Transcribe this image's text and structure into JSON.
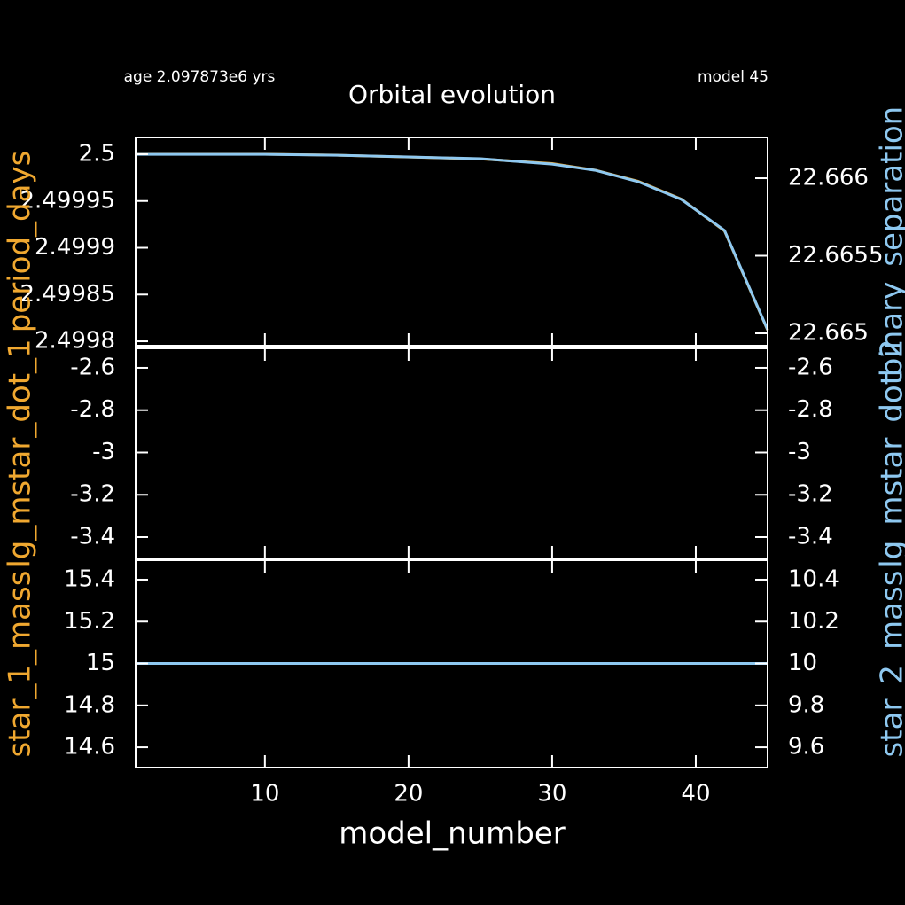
{
  "header": {
    "age": "age 2.097873e6 yrs",
    "model": "model 45"
  },
  "chart_data": [
    {
      "type": "line",
      "title": "Orbital evolution",
      "x": [
        1,
        5,
        10,
        15,
        20,
        25,
        30,
        33,
        36,
        39,
        42,
        45
      ],
      "series": [
        {
          "name": "period_days",
          "color": "#f0a830",
          "values": [
            2.5,
            2.5,
            2.5,
            2.499999,
            2.499997,
            2.499995,
            2.49999,
            2.499983,
            2.499971,
            2.499952,
            2.499918,
            2.499812
          ]
        },
        {
          "name": "binary_separation",
          "color": "#8ec8f0",
          "axis": "y2",
          "values": [
            22.666154,
            22.666154,
            22.666154,
            22.666148,
            22.666137,
            22.666126,
            22.666091,
            22.666051,
            22.665977,
            22.665863,
            22.665663,
            22.665023
          ]
        }
      ],
      "xlim": [
        1,
        45
      ],
      "xticks": [
        10,
        20,
        30,
        40
      ],
      "ylim": [
        2.4997953,
        2.500018
      ],
      "yticks": [
        2.4998,
        2.49985,
        2.4999,
        2.49995,
        2.5
      ],
      "y2lim": [
        22.66492,
        22.666263
      ],
      "y2ticks": [
        22.665,
        22.6655,
        22.666
      ]
    },
    {
      "type": "line",
      "x": [
        1,
        45
      ],
      "series": [
        {
          "name": "lg_mstar_dot_1",
          "color": "#f0a830",
          "values": [
            null,
            null
          ]
        },
        {
          "name": "lg_mstar_dot_2",
          "color": "#8ec8f0",
          "axis": "y2",
          "values": [
            null,
            null
          ]
        }
      ],
      "xlim": [
        1,
        45
      ],
      "xticks": [
        10,
        20,
        30,
        40
      ],
      "ylim": [
        -3.5005,
        -2.508
      ],
      "yticks": [
        -3.4,
        -3.2,
        -3,
        -2.8,
        -2.6
      ],
      "y2lim": [
        -3.5005,
        -2.508
      ],
      "y2ticks": [
        -3.4,
        -3.2,
        -3,
        -2.8,
        -2.6
      ]
    },
    {
      "type": "line",
      "xlabel": "model_number",
      "x": [
        1,
        45
      ],
      "series": [
        {
          "name": "star_1_mass",
          "color": "#f0a830",
          "values": [
            15,
            15
          ]
        },
        {
          "name": "star_2_mass",
          "color": "#8ec8f0",
          "axis": "y2",
          "values": [
            10,
            10
          ]
        }
      ],
      "xlim": [
        1,
        45
      ],
      "xticks": [
        10,
        20,
        30,
        40
      ],
      "ylim": [
        14.503,
        15.493
      ],
      "yticks": [
        14.6,
        14.8,
        15,
        15.2,
        15.4
      ],
      "y2lim": [
        9.503,
        10.493
      ],
      "y2ticks": [
        9.6,
        9.8,
        10,
        10.2,
        10.4
      ]
    }
  ]
}
